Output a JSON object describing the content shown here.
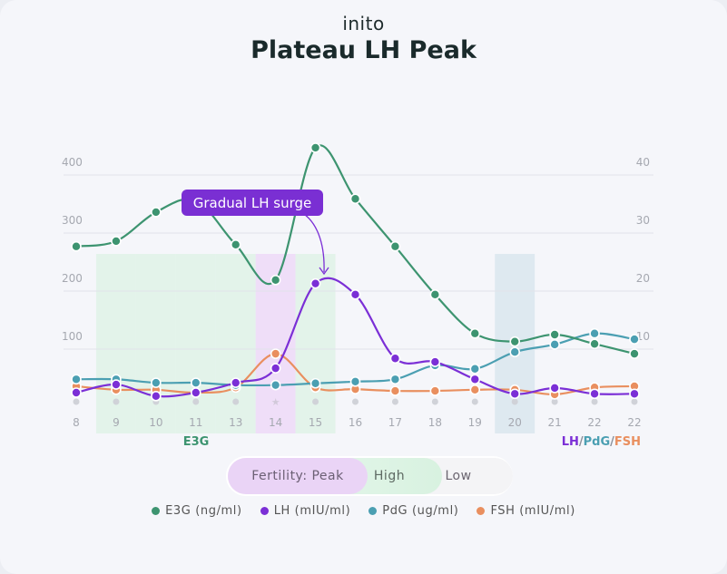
{
  "brand": "inito",
  "title": "Plateau LH Peak",
  "annotation": "Gradual LH surge",
  "fertility": {
    "peak_label": "Fertility: Peak",
    "high_label": "High",
    "low_label": "Low"
  },
  "colors": {
    "e3g": "#3d9470",
    "lh": "#7b2fd6",
    "pdg": "#4b9fb2",
    "fsh": "#e98f5f",
    "peak_band": "#ecd6f7",
    "high_band": "#dcf2e4",
    "low_band": "#d6e4ec"
  },
  "chart_data": {
    "type": "line",
    "categories": [
      "8",
      "9",
      "10",
      "11",
      "13",
      "14",
      "15",
      "16",
      "17",
      "18",
      "19",
      "20",
      "21",
      "22",
      "22"
    ],
    "left_axis": {
      "label": "E3G",
      "ticks": [
        100,
        200,
        300,
        400
      ],
      "range": [
        0,
        450
      ]
    },
    "right_axis": {
      "label_parts": [
        "LH",
        "/",
        "PdG",
        "/",
        "FSH"
      ],
      "ticks": [
        10,
        20,
        30,
        40
      ],
      "range": [
        0,
        45
      ]
    },
    "grid": true,
    "series": [
      {
        "name": "E3G (ng/ml)",
        "axis": "left",
        "key": "e3g",
        "values": [
          277,
          286,
          336,
          356,
          280,
          219,
          447,
          359,
          277,
          194,
          127,
          113,
          125,
          109,
          92
        ]
      },
      {
        "name": "LH (mIU/ml)",
        "axis": "right",
        "key": "lh",
        "values": [
          2.5,
          3.9,
          1.9,
          2.5,
          4.2,
          6.7,
          21.3,
          19.4,
          8.4,
          7.8,
          4.8,
          2.3,
          3.3,
          2.3,
          2.3
        ]
      },
      {
        "name": "PdG (ug/ml)",
        "axis": "right",
        "key": "pdg",
        "values": [
          4.8,
          4.8,
          4.2,
          4.2,
          3.8,
          3.8,
          4.1,
          4.4,
          4.8,
          7.2,
          6.6,
          9.5,
          10.8,
          12.7,
          11.7
        ]
      },
      {
        "name": "FSH (mIU/ml)",
        "axis": "right",
        "key": "fsh",
        "values": [
          3.6,
          3.0,
          3.0,
          2.5,
          3.4,
          9.2,
          3.4,
          3.1,
          2.8,
          2.8,
          3.0,
          3.0,
          2.2,
          3.4,
          3.6
        ]
      }
    ],
    "fertility_by_day": [
      "low",
      "high",
      "high",
      "high",
      "high",
      "peak",
      "high",
      "low",
      "low",
      "low",
      "low",
      "low-phase",
      "low",
      "low",
      "low"
    ],
    "legend_position": "bottom"
  }
}
